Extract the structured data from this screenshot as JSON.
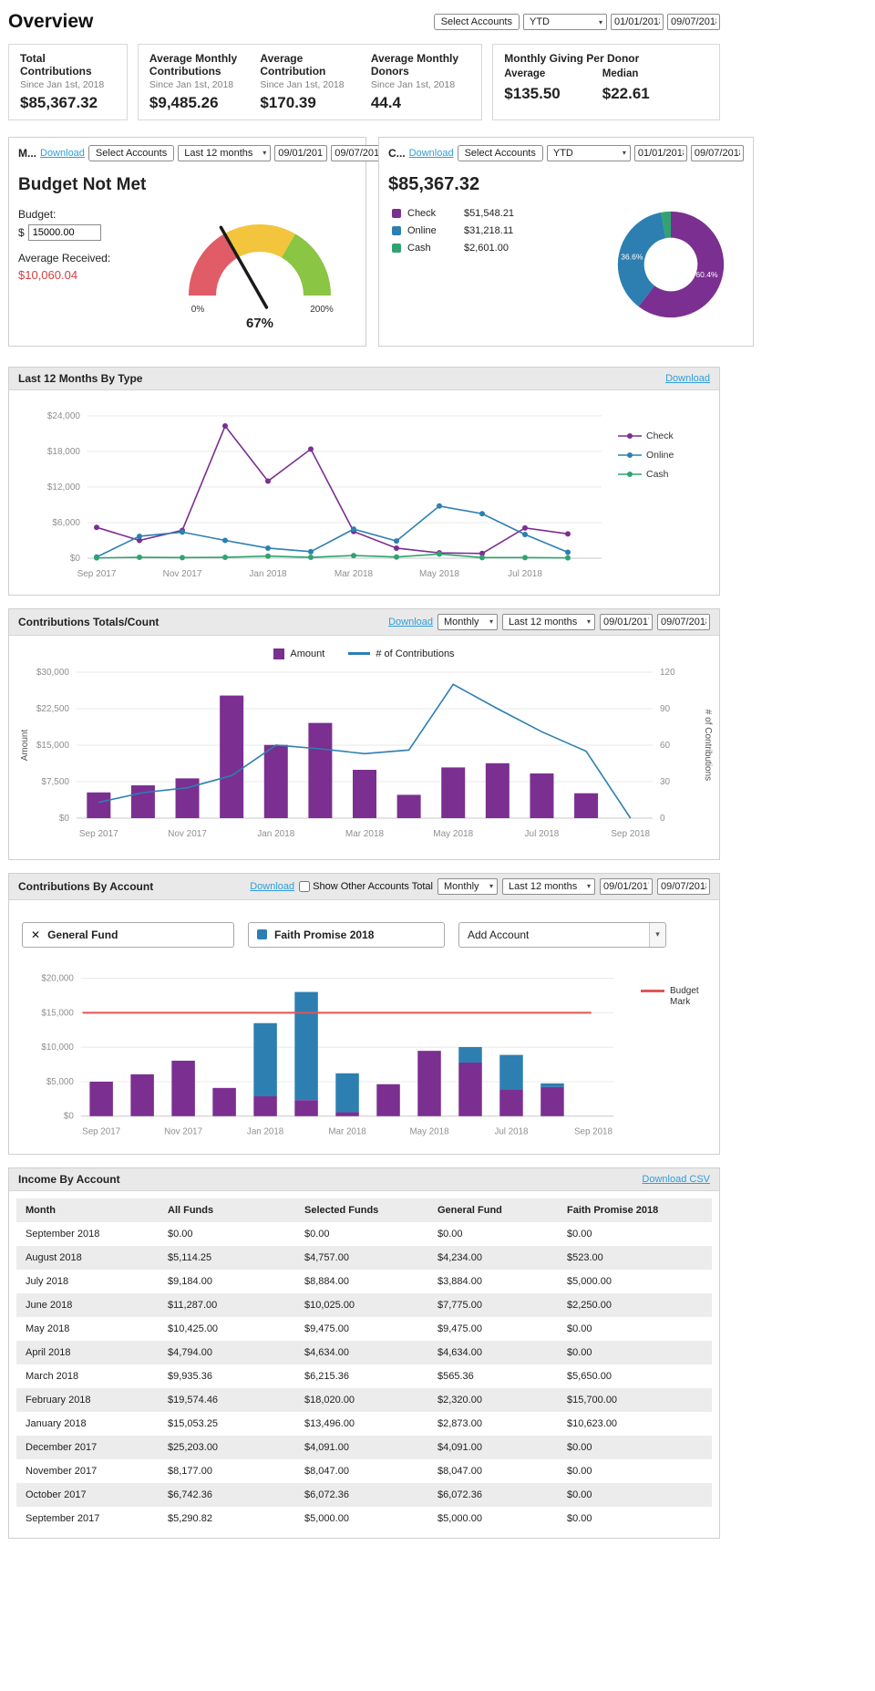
{
  "page_title": "Overview",
  "icons": {
    "chevron_down": "▾",
    "close": "✕"
  },
  "colors": {
    "purple": "#7b2f90",
    "blue": "#2d7fb2",
    "green": "#31a370",
    "budget_red": "#e25555",
    "gauge_red": "#e05c66",
    "gauge_yellow": "#f2c53d",
    "gauge_green": "#8ac543",
    "link": "#2f9ed9",
    "negative_red": "#d43f3f"
  },
  "toolbar": {
    "select_accounts_label": "Select Accounts",
    "period_value": "YTD",
    "date_start": "01/01/2018",
    "date_end": "09/07/2018"
  },
  "stats": {
    "total": {
      "label": "Total Contributions",
      "sub": "Since Jan 1st, 2018",
      "value": "$85,367.32"
    },
    "avg_monthly": {
      "label": "Average Monthly Contributions",
      "sub": "Since Jan 1st, 2018",
      "value": "$9,485.26"
    },
    "avg_contribution": {
      "label": "Average Contribution",
      "sub": "Since Jan 1st, 2018",
      "value": "$170.39"
    },
    "avg_donors": {
      "label": "Average Monthly Donors",
      "sub": "Since Jan 1st, 2018",
      "value": "44.4"
    },
    "per_donor": {
      "label": "Monthly Giving Per Donor",
      "avg_label": "Average",
      "avg_value": "$135.50",
      "median_label": "Median",
      "median_value": "$22.61"
    }
  },
  "budget_panel": {
    "title": "M...",
    "download_label": "Download",
    "select_accounts_label": "Select Accounts",
    "period_value": "Last 12 months",
    "date_start": "09/01/2017",
    "date_end": "09/07/2018",
    "status_heading": "Budget Not Met",
    "budget_label": "Budget:",
    "currency_symbol": "$",
    "budget_input_value": "15000.00",
    "avg_received_label": "Average Received:",
    "avg_received_value": "$10,060.04"
  },
  "type_panel": {
    "title": "C...",
    "download_label": "Download",
    "select_accounts_label": "Select Accounts",
    "period_value": "YTD",
    "date_start": "01/01/2018",
    "date_end": "09/07/2018",
    "total_value": "$85,367.32",
    "legend": [
      {
        "label": "Check",
        "value": "$51,548.21",
        "color": "#7b2f90"
      },
      {
        "label": "Online",
        "value": "$31,218.11",
        "color": "#2d7fb2"
      },
      {
        "label": "Cash",
        "value": "$2,601.00",
        "color": "#31a370"
      }
    ]
  },
  "by_type_panel": {
    "title": "Last 12 Months By Type",
    "download_label": "Download"
  },
  "totals_panel": {
    "title": "Contributions Totals/Count",
    "download_label": "Download",
    "interval_value": "Monthly",
    "period_value": "Last 12 months",
    "date_start": "09/01/2017",
    "date_end": "09/07/2018",
    "legend_amount": "Amount",
    "legend_count": "# of Contributions"
  },
  "by_account_panel": {
    "title": "Contributions By Account",
    "download_label": "Download",
    "show_other_label": "Show Other Accounts Total",
    "interval_value": "Monthly",
    "period_value": "Last 12 months",
    "date_start": "09/01/2017",
    "date_end": "09/07/2018",
    "chips": [
      {
        "label": "General Fund"
      },
      {
        "label": "Faith Promise 2018"
      }
    ],
    "add_account_label": "Add Account",
    "budget_mark_label": "Budget Mark"
  },
  "income_panel": {
    "title": "Income By Account",
    "download_label": "Download CSV",
    "columns": [
      "Month",
      "All Funds",
      "Selected Funds",
      "General Fund",
      "Faith Promise 2018"
    ],
    "rows": [
      [
        "September 2018",
        "$0.00",
        "$0.00",
        "$0.00",
        "$0.00"
      ],
      [
        "August 2018",
        "$5,114.25",
        "$4,757.00",
        "$4,234.00",
        "$523.00"
      ],
      [
        "July 2018",
        "$9,184.00",
        "$8,884.00",
        "$3,884.00",
        "$5,000.00"
      ],
      [
        "June 2018",
        "$11,287.00",
        "$10,025.00",
        "$7,775.00",
        "$2,250.00"
      ],
      [
        "May 2018",
        "$10,425.00",
        "$9,475.00",
        "$9,475.00",
        "$0.00"
      ],
      [
        "April 2018",
        "$4,794.00",
        "$4,634.00",
        "$4,634.00",
        "$0.00"
      ],
      [
        "March 2018",
        "$9,935.36",
        "$6,215.36",
        "$565.36",
        "$5,650.00"
      ],
      [
        "February 2018",
        "$19,574.46",
        "$18,020.00",
        "$2,320.00",
        "$15,700.00"
      ],
      [
        "January 2018",
        "$15,053.25",
        "$13,496.00",
        "$2,873.00",
        "$10,623.00"
      ],
      [
        "December 2017",
        "$25,203.00",
        "$4,091.00",
        "$4,091.00",
        "$0.00"
      ],
      [
        "November 2017",
        "$8,177.00",
        "$8,047.00",
        "$8,047.00",
        "$0.00"
      ],
      [
        "October 2017",
        "$6,742.36",
        "$6,072.36",
        "$6,072.36",
        "$0.00"
      ],
      [
        "September 2017",
        "$5,290.82",
        "$5,000.00",
        "$5,000.00",
        "$0.00"
      ]
    ]
  },
  "chart_data": [
    {
      "id": "budget-gauge",
      "type": "gauge",
      "value": 67,
      "min": 0,
      "max": 200,
      "min_label": "0%",
      "max_label": "200%",
      "value_label": "67%",
      "segments": [
        {
          "from": 0,
          "to": 66.7,
          "color": "#e05c66"
        },
        {
          "from": 66.7,
          "to": 133.3,
          "color": "#f2c53d"
        },
        {
          "from": 133.3,
          "to": 200,
          "color": "#8ac543"
        }
      ]
    },
    {
      "id": "type-donut",
      "type": "pie",
      "slices": [
        {
          "label": "Check",
          "pct": 60.4,
          "value": 51548.21,
          "color": "#7b2f90"
        },
        {
          "label": "Online",
          "pct": 36.6,
          "value": 31218.11,
          "color": "#2d7fb2"
        },
        {
          "label": "Cash",
          "pct": 3.0,
          "value": 2601.0,
          "color": "#31a370"
        }
      ],
      "labels": [
        {
          "text": "36.6%",
          "x": 20,
          "y": 55
        },
        {
          "text": "60.4%",
          "x": 97,
          "y": 73
        }
      ]
    },
    {
      "id": "by-type-line",
      "type": "line",
      "title": "Last 12 Months By Type",
      "categories": [
        "Sep 2017",
        "Oct 2017",
        "Nov 2017",
        "Dec 2017",
        "Jan 2018",
        "Feb 2018",
        "Mar 2018",
        "Apr 2018",
        "May 2018",
        "Jun 2018",
        "Jul 2018",
        "Aug 2018"
      ],
      "label_indices": [
        0,
        2,
        4,
        6,
        8,
        10
      ],
      "ylim": [
        0,
        24000
      ],
      "ystep": 6000,
      "series": [
        {
          "name": "Check",
          "color": "#7b2f90",
          "values": [
            5200,
            3000,
            4700,
            22300,
            13000,
            18400,
            4500,
            1700,
            900,
            800,
            5100,
            4100
          ]
        },
        {
          "name": "Online",
          "color": "#2d7fb2",
          "values": [
            200,
            3700,
            4400,
            3000,
            1700,
            1100,
            4900,
            2900,
            8800,
            7500,
            4000,
            1000
          ]
        },
        {
          "name": "Cash",
          "color": "#31a370",
          "values": [
            50,
            150,
            100,
            150,
            350,
            150,
            450,
            200,
            700,
            100,
            100,
            50
          ]
        }
      ]
    },
    {
      "id": "totals-combo",
      "type": "bar",
      "title": "Contributions Totals/Count",
      "categories": [
        "Sep 2017",
        "Oct 2017",
        "Nov 2017",
        "Dec 2017",
        "Jan 2018",
        "Feb 2018",
        "Mar 2018",
        "Apr 2018",
        "May 2018",
        "Jun 2018",
        "Jul 2018",
        "Aug 2018",
        "Sep 2018"
      ],
      "label_indices": [
        0,
        2,
        4,
        6,
        8,
        10,
        12
      ],
      "ylim_left": [
        0,
        30000
      ],
      "ystep_left": 7500,
      "ylim_right": [
        0,
        120
      ],
      "ystep_right": 30,
      "ylabel_left": "Amount",
      "ylabel_right": "# of Contributions",
      "bar_color": "#7b2f90",
      "line_color": "#2d7fb2",
      "amounts": [
        5290.82,
        6742.36,
        8177,
        25203,
        15053.25,
        19574.46,
        9935.36,
        4794,
        10425,
        11287,
        9184,
        5114.25,
        0
      ],
      "counts": [
        13,
        21,
        25,
        35,
        60,
        57,
        53,
        56,
        110,
        90,
        71,
        55,
        0
      ]
    },
    {
      "id": "by-account-stacked",
      "type": "bar",
      "title": "Contributions By Account",
      "categories": [
        "Sep 2017",
        "Oct 2017",
        "Nov 2017",
        "Dec 2017",
        "Jan 2018",
        "Feb 2018",
        "Mar 2018",
        "Apr 2018",
        "May 2018",
        "Jun 2018",
        "Jul 2018",
        "Aug 2018",
        "Sep 2018"
      ],
      "label_indices": [
        0,
        2,
        4,
        6,
        8,
        10,
        12
      ],
      "ylim": [
        0,
        20000
      ],
      "ystep": 5000,
      "budget_mark": 15000,
      "budget_color": "#e25555",
      "series": [
        {
          "name": "General Fund",
          "color": "#7b2f90",
          "values": [
            5000,
            6072.36,
            8047,
            4091,
            2873,
            2320,
            565.36,
            4634,
            9475,
            7775,
            3884,
            4234,
            0
          ]
        },
        {
          "name": "Faith Promise 2018",
          "color": "#2d7fb2",
          "values": [
            0,
            0,
            0,
            0,
            10623,
            15700,
            5650,
            0,
            0,
            2250,
            5000,
            523,
            0
          ]
        }
      ]
    }
  ]
}
